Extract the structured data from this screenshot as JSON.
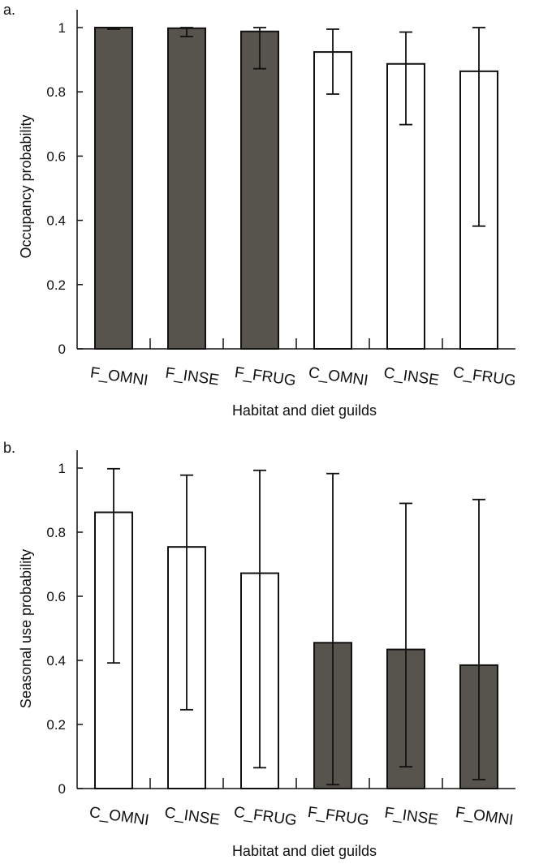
{
  "colors": {
    "fill_dark": "#57544e",
    "fill_light": "#ffffff",
    "stroke": "#111111"
  },
  "chart_data": [
    {
      "type": "bar",
      "panel_label": "a.",
      "categories": [
        "F_OMNI",
        "F_INSE",
        "F_FRUG",
        "C_OMNI",
        "C_INSE",
        "C_FRUG"
      ],
      "values": [
        1.0,
        0.998,
        0.988,
        0.924,
        0.887,
        0.864
      ],
      "err_low": [
        0.995,
        0.972,
        0.872,
        0.793,
        0.698,
        0.382
      ],
      "err_high": [
        1.0,
        1.0,
        1.0,
        0.995,
        0.986,
        1.0
      ],
      "fill": [
        "dark",
        "dark",
        "dark",
        "light",
        "light",
        "light"
      ],
      "xlabel": "Habitat and diet guilds",
      "ylabel": "Occupancy probability",
      "ylim": [
        0,
        1
      ],
      "yticks": [
        0,
        0.2,
        0.4,
        0.6,
        0.8,
        1
      ],
      "ytick_labels": [
        "0",
        "0.2",
        "0.4",
        "0.6",
        "0.8",
        "1"
      ]
    },
    {
      "type": "bar",
      "panel_label": "b.",
      "categories": [
        "C_OMNI",
        "C_INSE",
        "C_FRUG",
        "F_FRUG",
        "F_INSE",
        "F_OMNI"
      ],
      "values": [
        0.862,
        0.754,
        0.672,
        0.455,
        0.434,
        0.385
      ],
      "err_low": [
        0.392,
        0.246,
        0.065,
        0.012,
        0.068,
        0.028
      ],
      "err_high": [
        0.998,
        0.978,
        0.993,
        0.983,
        0.89,
        0.902
      ],
      "fill": [
        "light",
        "light",
        "light",
        "dark",
        "dark",
        "dark"
      ],
      "xlabel": "Habitat and diet guilds",
      "ylabel": "Seasonal use probability",
      "ylim": [
        0,
        1
      ],
      "yticks": [
        0,
        0.2,
        0.4,
        0.6,
        0.8,
        1
      ],
      "ytick_labels": [
        "0",
        "0.2",
        "0.4",
        "0.6",
        "0.8",
        "1"
      ]
    }
  ]
}
